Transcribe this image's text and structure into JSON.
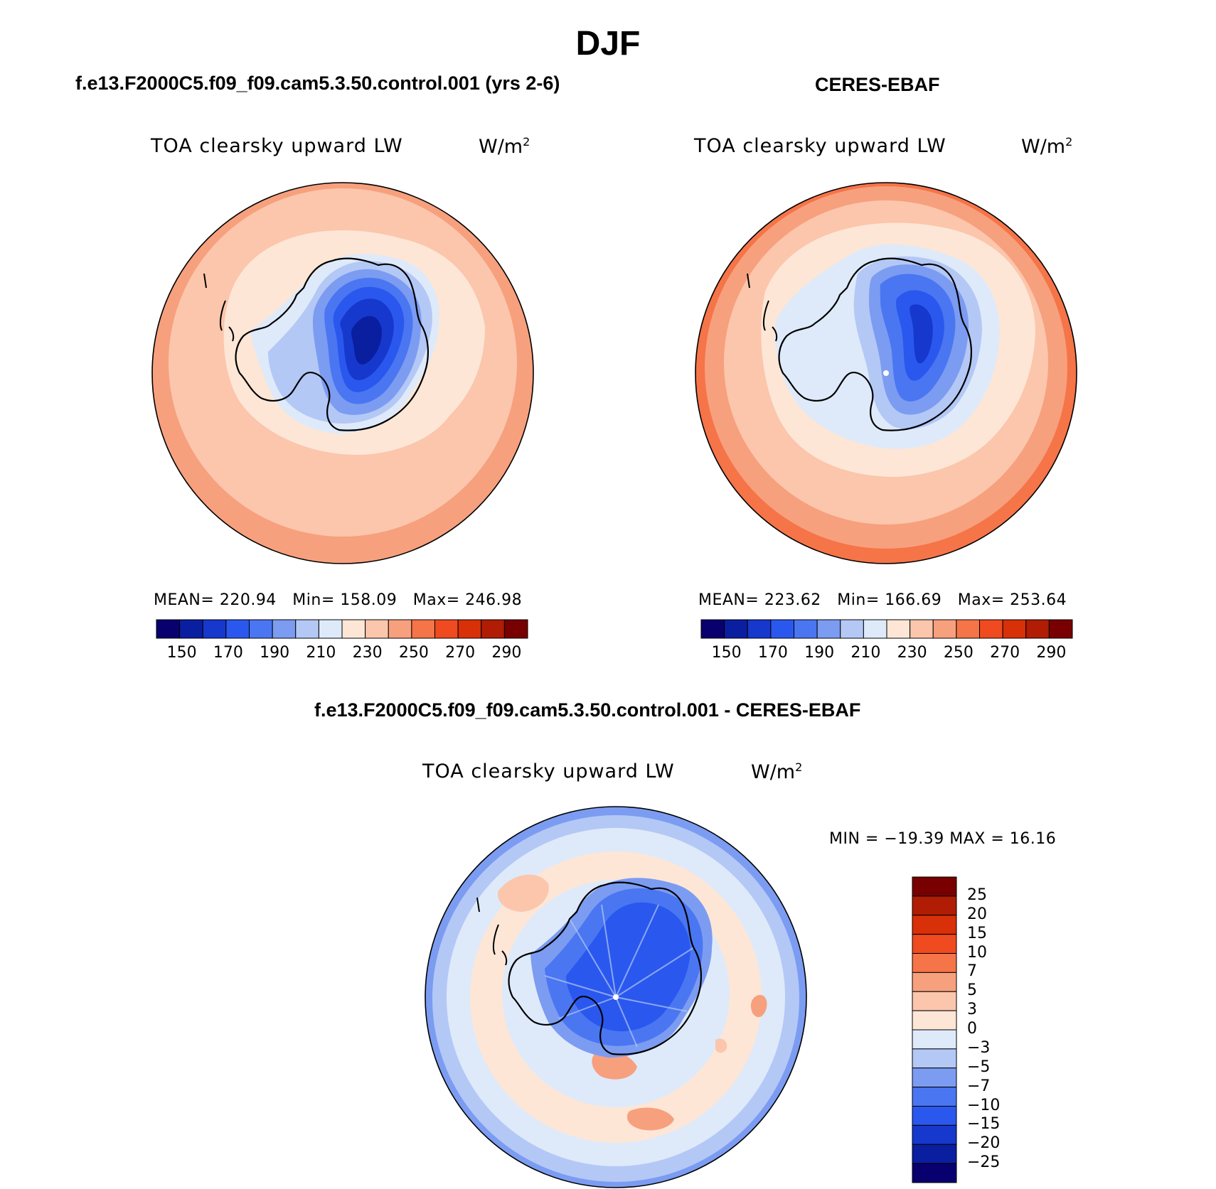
{
  "main_title": "DJF",
  "colors": {
    "scale_abs": [
      "#08006e",
      "#0a1ea0",
      "#1638cc",
      "#2a58ee",
      "#4a76f2",
      "#7c9cf2",
      "#b4c8f6",
      "#deeafa",
      "#fde6d6",
      "#fbc6ac",
      "#f7a07e",
      "#f57448",
      "#ef4a20",
      "#d83008",
      "#b01c04",
      "#780000"
    ],
    "scale_diff": [
      "#780000",
      "#b01c04",
      "#d83008",
      "#ef4a20",
      "#f57448",
      "#f7a07e",
      "#fbc6ac",
      "#fde6d6",
      "#deeafa",
      "#b4c8f6",
      "#7c9cf2",
      "#4a76f2",
      "#2a58ee",
      "#1638cc",
      "#0a1ea0",
      "#08006e"
    ],
    "antarctic_coast": "#000000"
  },
  "panels": {
    "model": {
      "heading": "f.e13.F2000C5.f09_f09.cam5.3.50.control.001 (yrs 2-6)",
      "variable": "TOA clearsky upward LW",
      "units_base": "W/m",
      "units_exp": "2",
      "stats": {
        "mean_label": "MEAN=",
        "mean": "220.94",
        "min_label": "Min=",
        "min": "158.09",
        "max_label": "Max=",
        "max": "246.98"
      }
    },
    "obs": {
      "heading": "CERES-EBAF",
      "variable": "TOA clearsky upward LW",
      "units_base": "W/m",
      "units_exp": "2",
      "stats": {
        "mean_label": "MEAN=",
        "mean": "223.62",
        "min_label": "Min=",
        "min": "166.69",
        "max_label": "Max=",
        "max": "253.64"
      }
    },
    "diff": {
      "heading": "f.e13.F2000C5.f09_f09.cam5.3.50.control.001 - CERES-EBAF",
      "variable": "TOA clearsky upward LW",
      "units_base": "W/m",
      "units_exp": "2",
      "minmax": "MIN = −19.39 MAX =  16.16"
    }
  },
  "abs_colorbar": {
    "ticks": [
      "150",
      "170",
      "190",
      "210",
      "230",
      "250",
      "270",
      "290"
    ]
  },
  "diff_colorbar": {
    "ticks": [
      "25",
      "20",
      "15",
      "10",
      "7",
      "5",
      "3",
      "0",
      "−3",
      "−5",
      "−7",
      "−10",
      "−15",
      "−20",
      "−25"
    ]
  }
}
